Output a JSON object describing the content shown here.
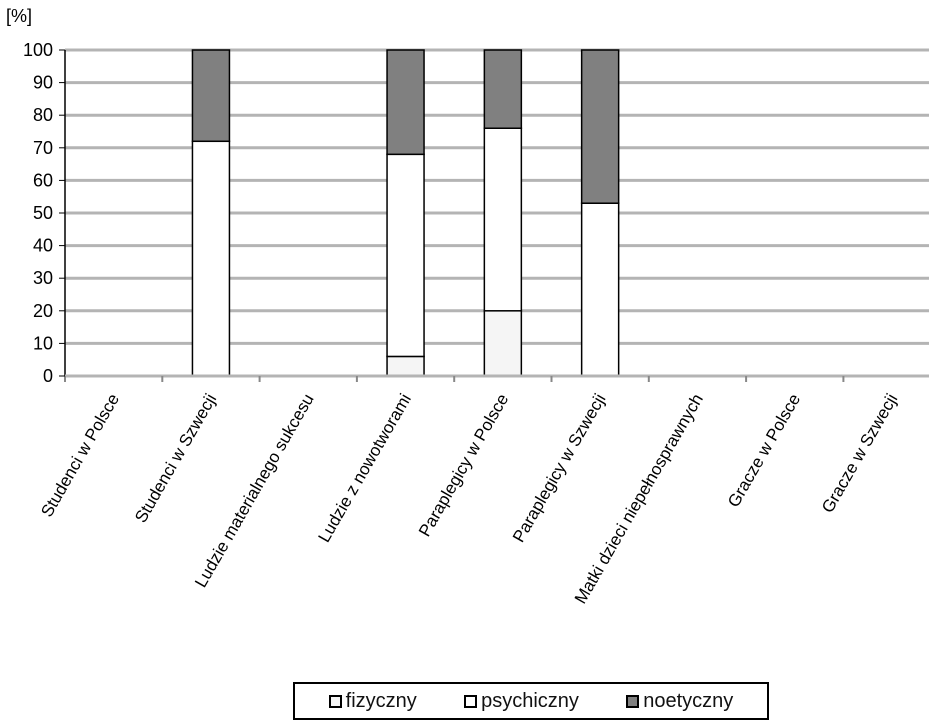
{
  "chart_data": {
    "type": "bar",
    "stacked": true,
    "ylabel": "[%]",
    "ylim": [
      0,
      100
    ],
    "yticks": [
      0,
      10,
      20,
      30,
      40,
      50,
      60,
      70,
      80,
      90,
      100
    ],
    "grid": true,
    "legend_position": "bottom",
    "categories": [
      "Studenci w Polsce",
      "Studenci w Szwecji",
      "Ludzie materialnego sukcesu",
      "Ludzie z nowotworami",
      "Paraplegicy w Polsce",
      "Paraplegicy w Szwecji",
      "Matki dzieci niepełnosprawnych",
      "Gracze w Polsce",
      "Gracze w Szwecji"
    ],
    "series": [
      {
        "name": "fizyczny",
        "color": "#f5f5f5",
        "values": [
          0,
          0,
          0,
          6,
          20,
          0,
          0,
          0,
          0
        ]
      },
      {
        "name": "psychiczny",
        "color": "#ffffff",
        "values": [
          0,
          72,
          0,
          62,
          56,
          53,
          0,
          0,
          0
        ]
      },
      {
        "name": "noetyczny",
        "color": "#808080",
        "values": [
          0,
          28,
          0,
          32,
          24,
          47,
          0,
          0,
          0
        ]
      }
    ]
  }
}
